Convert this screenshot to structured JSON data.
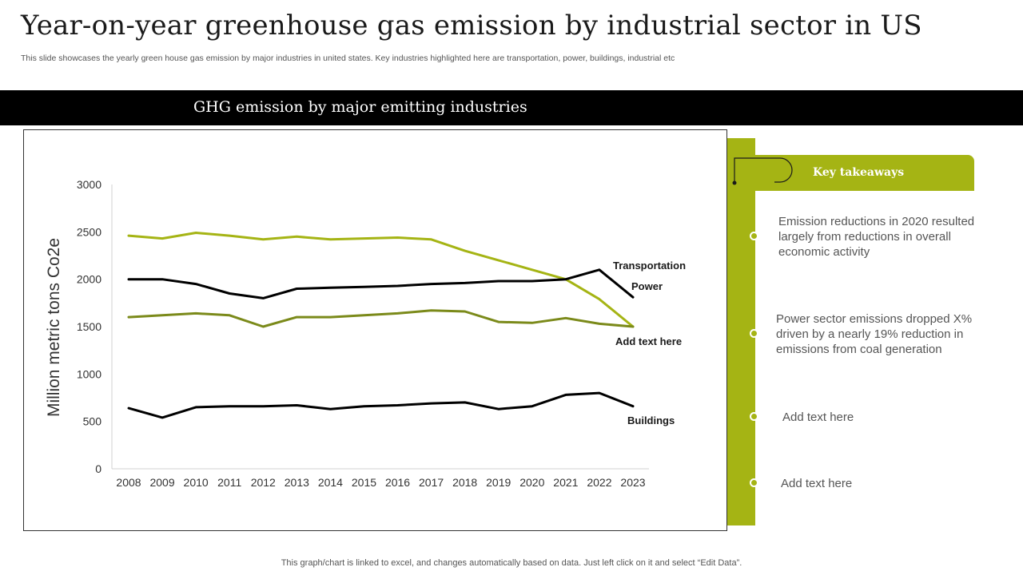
{
  "header": {
    "title": "Year-on-year greenhouse gas emission by industrial sector in US",
    "subtitle": "This slide showcases the yearly green house gas emission by major industries in united states. Key industries highlighted here are transportation, power, buildings, industrial etc"
  },
  "banner": {
    "title": "GHG emission by major emitting industries"
  },
  "chart_data": {
    "type": "line",
    "title": "",
    "xlabel": "",
    "ylabel": "Million metric tons Co2e",
    "ylim": [
      0,
      3000
    ],
    "yticks": [
      0,
      500,
      1000,
      1500,
      2000,
      2500,
      3000
    ],
    "grid": false,
    "legend": "none",
    "categories": [
      "2008",
      "2009",
      "2010",
      "2011",
      "2012",
      "2013",
      "2014",
      "2015",
      "2016",
      "2017",
      "2018",
      "2019",
      "2020",
      "2021",
      "2022",
      "2023"
    ],
    "series": [
      {
        "name": "Transportation",
        "color": "#a5b414",
        "values": [
          2460,
          2430,
          2490,
          2460,
          2420,
          2450,
          2420,
          2430,
          2440,
          2420,
          2300,
          2200,
          2100,
          2000,
          1790,
          1500
        ]
      },
      {
        "name": "Power",
        "color": "#000000",
        "values": [
          2000,
          2000,
          1950,
          1850,
          1800,
          1900,
          1910,
          1920,
          1930,
          1950,
          1960,
          1980,
          1980,
          2000,
          2100,
          1810
        ]
      },
      {
        "name": "Add text here",
        "color": "#7b8a1a",
        "values": [
          1600,
          1620,
          1640,
          1620,
          1500,
          1600,
          1600,
          1620,
          1640,
          1670,
          1660,
          1550,
          1540,
          1590,
          1530,
          1500
        ]
      },
      {
        "name": "Buildings",
        "color": "#000000",
        "values": [
          640,
          540,
          650,
          660,
          660,
          670,
          630,
          660,
          670,
          690,
          700,
          630,
          660,
          780,
          800,
          660
        ]
      }
    ]
  },
  "takeaways": {
    "title": "Key takeaways",
    "items": [
      "Emission reductions in 2020 resulted largely from reductions in overall economic activity",
      "Power sector emissions dropped X% driven by a nearly 19% reduction in emissions from coal generation",
      "Add text here",
      "Add text here"
    ]
  },
  "footer": {
    "note": "This graph/chart is linked to excel,  and changes automatically based on data. Just left click on it and select “Edit Data”."
  },
  "colors": {
    "accent": "#a5b414",
    "dark_olive": "#7b8a1a",
    "banner": "#000000"
  }
}
